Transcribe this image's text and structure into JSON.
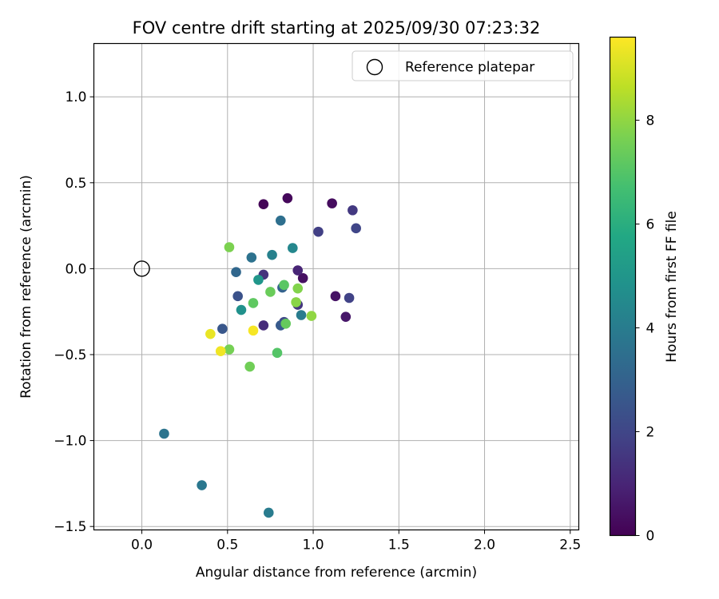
{
  "chart_data": {
    "type": "scatter",
    "title": "FOV centre drift starting at 2025/09/30 07:23:32",
    "xlabel": "Angular distance from reference (arcmin)",
    "ylabel": "Rotation from reference (arcmin)",
    "xlim": [
      -0.28,
      2.55
    ],
    "ylim": [
      -1.52,
      1.31
    ],
    "xticks": [
      0.0,
      0.5,
      1.0,
      1.5,
      2.0,
      2.5
    ],
    "xtick_labels": [
      "0.0",
      "0.5",
      "1.0",
      "1.5",
      "2.0",
      "2.5"
    ],
    "yticks": [
      -1.5,
      -1.0,
      -0.5,
      0.0,
      0.5,
      1.0
    ],
    "ytick_labels": [
      "−1.5",
      "−1.0",
      "−0.5",
      "0.0",
      "0.5",
      "1.0"
    ],
    "grid": true,
    "legend": {
      "label": "Reference platepar",
      "placement": "upper-right"
    },
    "reference_point": {
      "x": 0.0,
      "y": 0.0
    },
    "colorbar": {
      "label": "Hours from first FF file",
      "colormap": "viridis",
      "range": [
        0,
        9.6
      ],
      "ticks": [
        0,
        2,
        4,
        6,
        8
      ],
      "tick_labels": [
        "0",
        "2",
        "4",
        "6",
        "8"
      ]
    },
    "points": [
      {
        "x": 0.71,
        "y": 0.375,
        "t": 0.1
      },
      {
        "x": 0.85,
        "y": 0.41,
        "t": 0.2
      },
      {
        "x": 1.11,
        "y": 0.38,
        "t": 0.3
      },
      {
        "x": 0.94,
        "y": -0.055,
        "t": 0.4
      },
      {
        "x": 1.13,
        "y": -0.16,
        "t": 0.5
      },
      {
        "x": 1.19,
        "y": -0.28,
        "t": 0.6
      },
      {
        "x": 0.91,
        "y": -0.01,
        "t": 1.0
      },
      {
        "x": 0.71,
        "y": -0.33,
        "t": 1.2
      },
      {
        "x": 0.71,
        "y": -0.035,
        "t": 1.4
      },
      {
        "x": 0.91,
        "y": -0.21,
        "t": 1.5
      },
      {
        "x": 1.23,
        "y": 0.34,
        "t": 1.6
      },
      {
        "x": 1.03,
        "y": 0.215,
        "t": 1.8
      },
      {
        "x": 1.21,
        "y": -0.17,
        "t": 1.9
      },
      {
        "x": 1.25,
        "y": 0.235,
        "t": 2.0
      },
      {
        "x": 0.83,
        "y": -0.31,
        "t": 2.1
      },
      {
        "x": 0.56,
        "y": -0.16,
        "t": 2.4
      },
      {
        "x": 0.47,
        "y": -0.35,
        "t": 2.6
      },
      {
        "x": 0.81,
        "y": -0.33,
        "t": 2.7
      },
      {
        "x": 0.82,
        "y": -0.11,
        "t": 3.0
      },
      {
        "x": 0.55,
        "y": -0.02,
        "t": 3.2
      },
      {
        "x": 0.81,
        "y": 0.28,
        "t": 3.5
      },
      {
        "x": 0.64,
        "y": 0.065,
        "t": 3.6
      },
      {
        "x": 0.13,
        "y": -0.96,
        "t": 3.7
      },
      {
        "x": 0.35,
        "y": -1.26,
        "t": 3.8
      },
      {
        "x": 0.93,
        "y": -0.27,
        "t": 4.0
      },
      {
        "x": 0.74,
        "y": -1.42,
        "t": 4.0
      },
      {
        "x": 0.76,
        "y": 0.08,
        "t": 4.2
      },
      {
        "x": 0.88,
        "y": 0.12,
        "t": 4.4
      },
      {
        "x": 0.58,
        "y": -0.24,
        "t": 4.8
      },
      {
        "x": 0.68,
        "y": -0.065,
        "t": 5.0
      },
      {
        "x": 0.79,
        "y": -0.49,
        "t": 7.0
      },
      {
        "x": 0.83,
        "y": -0.095,
        "t": 7.1
      },
      {
        "x": 0.65,
        "y": -0.2,
        "t": 7.2
      },
      {
        "x": 0.84,
        "y": -0.32,
        "t": 7.3
      },
      {
        "x": 0.75,
        "y": -0.135,
        "t": 7.4
      },
      {
        "x": 0.63,
        "y": -0.57,
        "t": 7.5
      },
      {
        "x": 0.51,
        "y": -0.47,
        "t": 7.6
      },
      {
        "x": 0.51,
        "y": 0.125,
        "t": 7.7
      },
      {
        "x": 0.91,
        "y": -0.115,
        "t": 7.8
      },
      {
        "x": 0.9,
        "y": -0.195,
        "t": 7.9
      },
      {
        "x": 0.99,
        "y": -0.275,
        "t": 8.0
      },
      {
        "x": 0.4,
        "y": -0.38,
        "t": 9.3
      },
      {
        "x": 0.46,
        "y": -0.48,
        "t": 9.4
      },
      {
        "x": 0.65,
        "y": -0.36,
        "t": 9.5
      }
    ]
  }
}
